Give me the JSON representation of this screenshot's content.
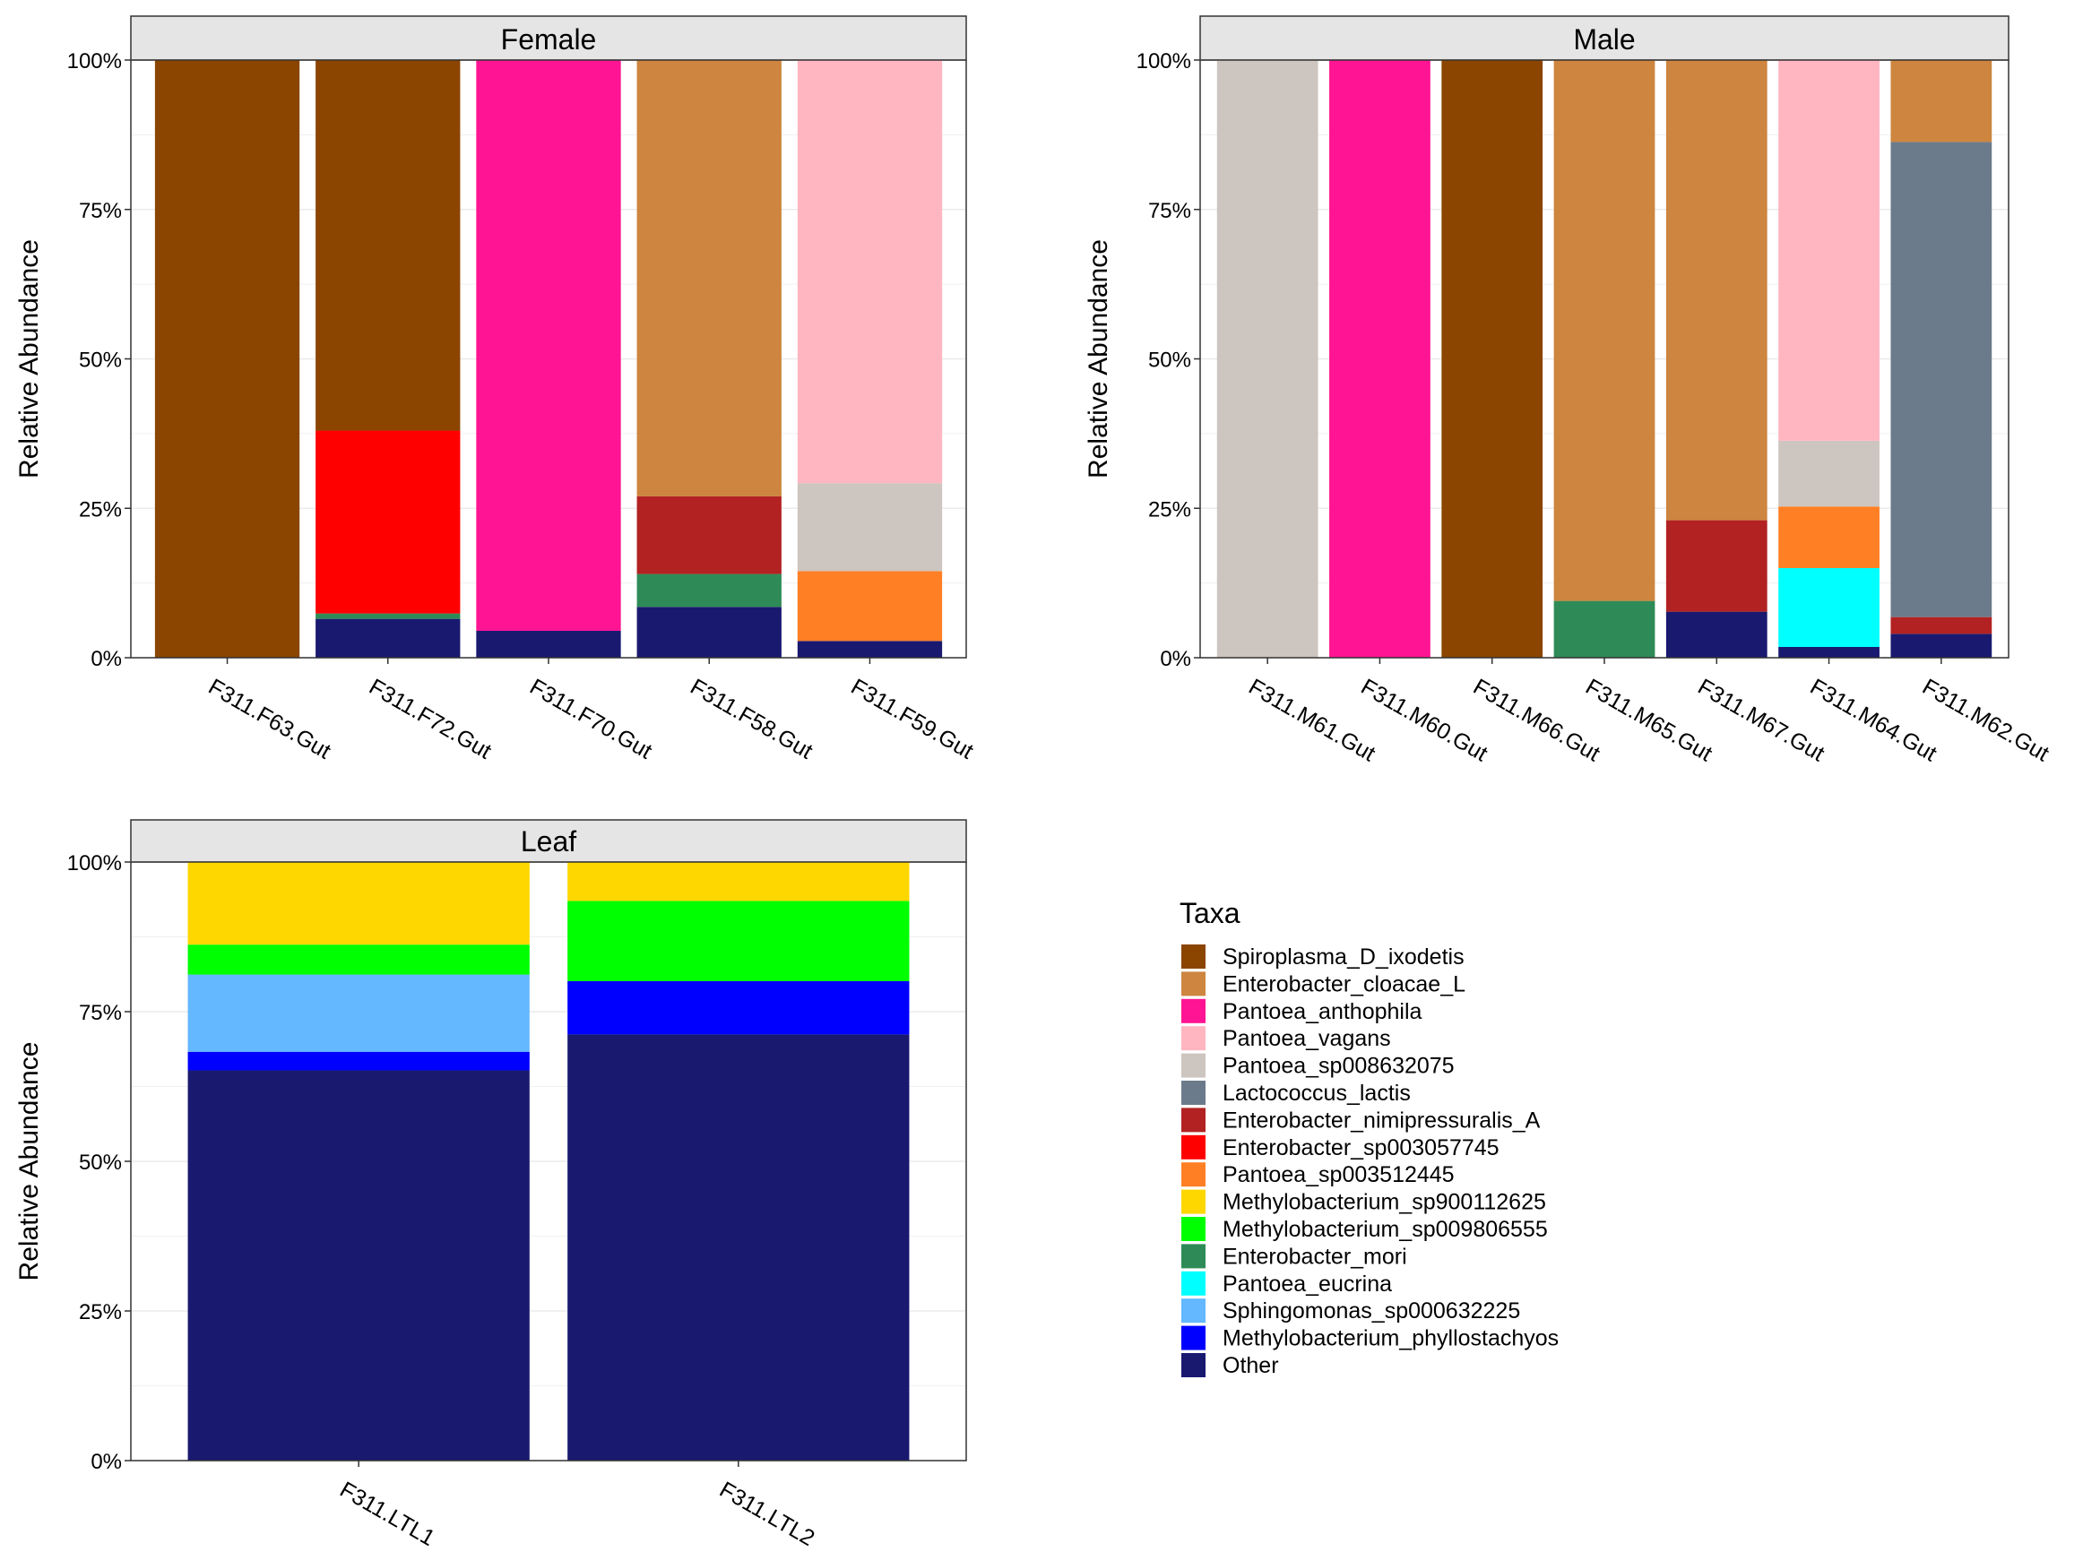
{
  "chart_data": {
    "type": "bar",
    "stacked": true,
    "ylabel": "Relative Abundance",
    "ylim": [
      0,
      100
    ],
    "yticks": [
      "0%",
      "25%",
      "50%",
      "75%",
      "100%"
    ],
    "legend": {
      "title": "Taxa",
      "placement": "bottom-right",
      "entries": [
        {
          "name": "Spiroplasma_D_ixodetis",
          "color": "#8B4500"
        },
        {
          "name": "Enterobacter_cloacae_L",
          "color": "#CD853F"
        },
        {
          "name": "Pantoea_anthophila",
          "color": "#FF1493"
        },
        {
          "name": "Pantoea_vagans",
          "color": "#FFB6C1"
        },
        {
          "name": "Pantoea_sp008632075",
          "color": "#CDC5BF"
        },
        {
          "name": "Lactococcus_lactis",
          "color": "#6C7B8B"
        },
        {
          "name": "Enterobacter_nimipressuralis_A",
          "color": "#B22222"
        },
        {
          "name": "Enterobacter_sp003057745",
          "color": "#FF0000"
        },
        {
          "name": "Pantoea_sp003512445",
          "color": "#FF7F24"
        },
        {
          "name": "Methylobacterium_sp900112625",
          "color": "#FFD700"
        },
        {
          "name": "Methylobacterium_sp009806555",
          "color": "#00FF00"
        },
        {
          "name": "Enterobacter_mori",
          "color": "#2E8B57"
        },
        {
          "name": "Pantoea_eucrina",
          "color": "#00FFFF"
        },
        {
          "name": "Sphingomonas_sp000632225",
          "color": "#63B8FF"
        },
        {
          "name": "Methylobacterium_phyllostachyos",
          "color": "#0000FF"
        },
        {
          "name": "Other",
          "color": "#191970"
        }
      ]
    },
    "panels": [
      {
        "title": "Female",
        "samples": [
          {
            "name": "F311.F63.Gut",
            "values": {
              "Spiroplasma_D_ixodetis": 100
            }
          },
          {
            "name": "F311.F72.Gut",
            "values": {
              "Other": 6.5,
              "Enterobacter_mori": 0.9,
              "Enterobacter_sp003057745": 30.6,
              "Spiroplasma_D_ixodetis": 62.0
            }
          },
          {
            "name": "F311.F70.Gut",
            "values": {
              "Other": 4.5,
              "Pantoea_anthophila": 95.5
            }
          },
          {
            "name": "F311.F58.Gut",
            "values": {
              "Other": 8.5,
              "Enterobacter_mori": 5.5,
              "Enterobacter_nimipressuralis_A": 13.0,
              "Enterobacter_cloacae_L": 73.0
            }
          },
          {
            "name": "F311.F59.Gut",
            "values": {
              "Other": 2.8,
              "Pantoea_sp003512445": 11.7,
              "Pantoea_sp008632075": 14.7,
              "Pantoea_vagans": 70.8
            }
          }
        ]
      },
      {
        "title": "Male",
        "samples": [
          {
            "name": "F311.M61.Gut",
            "values": {
              "Pantoea_sp008632075": 100
            }
          },
          {
            "name": "F311.M60.Gut",
            "values": {
              "Pantoea_anthophila": 100
            }
          },
          {
            "name": "F311.M66.Gut",
            "values": {
              "Spiroplasma_D_ixodetis": 100
            }
          },
          {
            "name": "F311.M65.Gut",
            "values": {
              "Enterobacter_mori": 9.5,
              "Enterobacter_cloacae_L": 90.5
            }
          },
          {
            "name": "F311.M67.Gut",
            "values": {
              "Other": 7.7,
              "Enterobacter_nimipressuralis_A": 15.3,
              "Enterobacter_cloacae_L": 77.0
            }
          },
          {
            "name": "F311.M64.Gut",
            "values": {
              "Other": 1.8,
              "Pantoea_eucrina": 13.2,
              "Pantoea_sp003512445": 10.3,
              "Pantoea_sp008632075": 11.0,
              "Pantoea_vagans": 63.7
            }
          },
          {
            "name": "F311.M62.Gut",
            "values": {
              "Other": 4.0,
              "Enterobacter_nimipressuralis_A": 2.8,
              "Lactococcus_lactis": 79.5,
              "Enterobacter_cloacae_L": 13.7
            }
          }
        ]
      },
      {
        "title": "Leaf",
        "samples": [
          {
            "name": "F311.LTL1",
            "values": {
              "Other": 65.2,
              "Methylobacterium_phyllostachyos": 3.1,
              "Sphingomonas_sp000632225": 12.9,
              "Methylobacterium_sp009806555": 5.0,
              "Methylobacterium_sp900112625": 13.8
            }
          },
          {
            "name": "F311.LTL2",
            "values": {
              "Other": 71.2,
              "Methylobacterium_phyllostachyos": 8.9,
              "Methylobacterium_sp009806555": 13.4,
              "Methylobacterium_sp900112625": 6.5
            }
          }
        ]
      }
    ]
  }
}
